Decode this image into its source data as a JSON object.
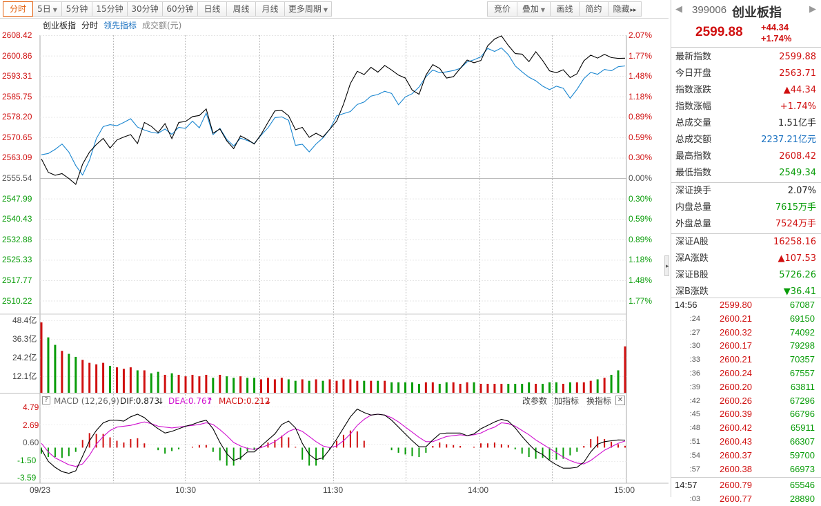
{
  "toolbar": {
    "left": [
      {
        "label": "分时",
        "caret": false
      },
      {
        "label": "5日",
        "caret": true
      },
      {
        "label": "5分钟",
        "caret": false
      },
      {
        "label": "15分钟",
        "caret": false
      },
      {
        "label": "30分钟",
        "caret": false
      },
      {
        "label": "60分钟",
        "caret": false
      },
      {
        "label": "日线",
        "caret": false
      },
      {
        "label": "周线",
        "caret": false
      },
      {
        "label": "月线",
        "caret": false
      },
      {
        "label": "更多周期",
        "caret": true
      }
    ],
    "right": [
      {
        "label": "竞价",
        "caret": false
      },
      {
        "label": "叠加",
        "caret": true
      },
      {
        "label": "画线",
        "caret": false
      },
      {
        "label": "简约",
        "caret": false
      },
      {
        "label": "隐藏",
        "caret": false,
        "more": "▸▸"
      }
    ]
  },
  "chart_header": {
    "name": "创业板指",
    "mode": "分时",
    "lead": "领先指标",
    "vol": "成交额(元)"
  },
  "price_axis": {
    "left": [
      "2608.42",
      "2600.86",
      "2593.31",
      "2585.75",
      "2578.20",
      "2570.65",
      "2563.09",
      "2555.54",
      "2547.99",
      "2540.43",
      "2532.88",
      "2525.33",
      "2517.77",
      "2510.22"
    ],
    "right": [
      "2.07%",
      "1.77%",
      "1.48%",
      "1.18%",
      "0.89%",
      "0.59%",
      "0.30%",
      "0.00%",
      "0.30%",
      "0.59%",
      "0.89%",
      "1.18%",
      "1.48%",
      "1.77%"
    ]
  },
  "volume_axis": [
    "48.4亿",
    "36.3亿",
    "24.2亿",
    "12.1亿"
  ],
  "macd": {
    "question": "?",
    "name": "MACD (12,26,9)",
    "dif": "DIF:0.873",
    "dea": "DEA:0.767",
    "macd": "MACD:0.212",
    "params": "改参数",
    "add": "加指标",
    "swap": "换指标",
    "close": "✕",
    "axis": [
      "4.79",
      "2.69",
      "0.60",
      "-1.50",
      "-3.59"
    ]
  },
  "time_axis": [
    "09/23",
    "10:30",
    "11:30",
    "14:00",
    "15:00"
  ],
  "colors": {
    "up": "#d01010",
    "down": "#089c08",
    "price": "#000000",
    "avg": "#1a86d0",
    "dea": "#d010d0"
  },
  "quote": {
    "code": "399006",
    "name": "创业板指",
    "price": "2599.88",
    "change": "+44.34",
    "pct": "+1.74%"
  },
  "stats": [
    {
      "k": "最新指数",
      "v": "2599.88",
      "c": "red"
    },
    {
      "k": "今日开盘",
      "v": "2563.71",
      "c": "red"
    },
    {
      "k": "指数涨跌",
      "v": "▲44.34",
      "c": "red"
    },
    {
      "k": "指数涨幅",
      "v": "+1.74%",
      "c": "red"
    },
    {
      "k": "总成交量",
      "v": "1.51亿手",
      "c": "blk"
    },
    {
      "k": "总成交额",
      "v": "2237.21亿元",
      "c": "blu"
    },
    {
      "k": "最高指数",
      "v": "2608.42",
      "c": "red"
    },
    {
      "k": "最低指数",
      "v": "2549.34",
      "c": "grn"
    },
    {
      "k": "深证换手",
      "v": "2.07%",
      "c": "blk"
    },
    {
      "k": "内盘总量",
      "v": "7615万手",
      "c": "grn"
    },
    {
      "k": "外盘总量",
      "v": "7524万手",
      "c": "red"
    },
    {
      "k": "深证A股",
      "v": "16258.16",
      "c": "red"
    },
    {
      "k": "深A涨跌",
      "v": "▲107.53",
      "c": "red"
    },
    {
      "k": "深证B股",
      "v": "5726.26",
      "c": "grn"
    },
    {
      "k": "深B涨跌",
      "v": "▼36.41",
      "c": "grn"
    }
  ],
  "ticks": [
    {
      "t": "14:56",
      "p": "2599.80",
      "v": "67087",
      "big": true
    },
    {
      "t": ":24",
      "p": "2600.21",
      "v": "69150"
    },
    {
      "t": ":27",
      "p": "2600.32",
      "v": "74092"
    },
    {
      "t": ":30",
      "p": "2600.17",
      "v": "79298"
    },
    {
      "t": ":33",
      "p": "2600.21",
      "v": "70357"
    },
    {
      "t": ":36",
      "p": "2600.24",
      "v": "67557"
    },
    {
      "t": ":39",
      "p": "2600.20",
      "v": "63811"
    },
    {
      "t": ":42",
      "p": "2600.26",
      "v": "67296"
    },
    {
      "t": ":45",
      "p": "2600.39",
      "v": "66796"
    },
    {
      "t": ":48",
      "p": "2600.42",
      "v": "65911"
    },
    {
      "t": ":51",
      "p": "2600.43",
      "v": "66307"
    },
    {
      "t": ":54",
      "p": "2600.37",
      "v": "59700"
    },
    {
      "t": ":57",
      "p": "2600.38",
      "v": "66973"
    },
    {
      "t": "14:57",
      "p": "2600.79",
      "v": "65546",
      "big": true
    },
    {
      "t": ":03",
      "p": "2600.77",
      "v": "28890"
    }
  ],
  "chart_data": {
    "type": "line",
    "prev_close": 2555.54,
    "price": {
      "name": "创业板指",
      "values": [
        2562.5,
        2557.5,
        2556.4,
        2557.0,
        2555.2,
        2553.0,
        2560.5,
        2565.0,
        2567.8,
        2570.1,
        2566.5,
        2569.5,
        2570.6,
        2571.5,
        2568.2,
        2576.0,
        2574.6,
        2572.3,
        2575.6,
        2570.0,
        2576.0,
        2576.4,
        2578.2,
        2578.6,
        2581.0,
        2572.0,
        2573.6,
        2569.2,
        2566.3,
        2571.0,
        2569.7,
        2568.0,
        2571.6,
        2576.0,
        2580.3,
        2580.5,
        2578.5,
        2573.3,
        2574.2,
        2570.5,
        2572.0,
        2570.6,
        2573.5,
        2576.5,
        2582.8,
        2590.5,
        2595.0,
        2593.8,
        2596.5,
        2594.7,
        2597.2,
        2595.5,
        2593.6,
        2592.5,
        2588.0,
        2586.5,
        2593.6,
        2597.5,
        2596.1,
        2592.5,
        2593.0,
        2596.1,
        2599.2,
        2598.2,
        2599.0,
        2604.5,
        2607.0,
        2608.2,
        2604.6,
        2601.6,
        2601.4,
        2598.6,
        2602.3,
        2599.0,
        2595.2,
        2594.5,
        2595.6,
        2592.7,
        2594.1,
        2598.9,
        2601.0,
        2599.9,
        2601.3,
        2600.1,
        2599.8,
        2599.88
      ]
    },
    "avg": {
      "name": "领先指标",
      "values": [
        2564.0,
        2564.5,
        2566.0,
        2568.0,
        2565.0,
        2560.0,
        2556.5,
        2562.0,
        2570.0,
        2574.5,
        2575.2,
        2574.8,
        2576.0,
        2577.4,
        2574.3,
        2573.2,
        2572.4,
        2572.0,
        2573.6,
        2571.6,
        2574.2,
        2573.8,
        2576.5,
        2574.0,
        2579.5,
        2571.5,
        2573.8,
        2569.7,
        2567.3,
        2570.2,
        2569.3,
        2568.2,
        2571.3,
        2574.0,
        2577.8,
        2578.1,
        2576.8,
        2567.5,
        2567.9,
        2565.1,
        2568.0,
        2570.3,
        2573.5,
        2578.5,
        2579.3,
        2580.1,
        2582.7,
        2583.6,
        2585.8,
        2586.4,
        2587.6,
        2586.8,
        2582.6,
        2585.5,
        2586.7,
        2589.2,
        2593.0,
        2595.5,
        2594.5,
        2594.8,
        2595.3,
        2596.1,
        2598.5,
        2599.3,
        2600.4,
        2603.5,
        2602.4,
        2603.7,
        2601.2,
        2597.0,
        2594.8,
        2592.8,
        2591.5,
        2589.5,
        2588.2,
        2589.5,
        2588.7,
        2585.0,
        2588.3,
        2592.3,
        2594.6,
        2593.9,
        2595.7,
        2595.2,
        2596.7,
        2597.0
      ]
    },
    "volume": [
      47,
      37,
      32,
      28,
      26,
      24,
      22,
      20,
      19,
      20,
      18,
      17,
      16,
      17,
      15,
      15,
      13,
      14,
      12,
      13,
      12,
      11,
      12,
      11,
      12,
      10,
      12,
      11,
      10,
      11,
      10,
      10,
      9,
      10,
      9,
      10,
      9,
      8,
      9,
      8,
      9,
      8,
      9,
      8,
      9,
      9,
      8,
      8,
      8,
      8,
      8,
      7,
      7,
      7,
      7,
      6,
      7,
      7,
      6,
      7,
      7,
      6,
      7,
      7,
      6,
      6,
      6,
      6,
      6,
      6,
      6,
      7,
      6,
      6,
      7,
      7,
      6,
      7,
      7,
      7,
      8,
      9,
      10,
      12,
      15,
      31
    ],
    "dif": [
      -0.2,
      -1.6,
      -2.3,
      -2.8,
      -3.0,
      -2.7,
      -1.0,
      0.8,
      2.0,
      2.9,
      3.2,
      3.2,
      3.1,
      3.6,
      3.9,
      3.5,
      2.8,
      2.2,
      1.7,
      1.9,
      2.2,
      2.5,
      2.7,
      3.0,
      3.2,
      2.2,
      0.6,
      -0.7,
      -1.5,
      -1.2,
      -0.5,
      -0.5,
      0.2,
      0.9,
      1.6,
      2.7,
      3.1,
      2.3,
      0.5,
      -0.8,
      -1.4,
      -1.2,
      -0.2,
      1.0,
      2.3,
      3.6,
      4.5,
      4.1,
      3.8,
      3.9,
      3.8,
      3.2,
      2.4,
      1.6,
      0.8,
      0.1,
      0.1,
      0.9,
      1.6,
      1.7,
      1.7,
      1.7,
      1.4,
      1.6,
      2.2,
      2.6,
      3.0,
      3.3,
      3.1,
      2.3,
      1.3,
      0.4,
      -0.4,
      -0.8,
      -1.5,
      -2.0,
      -2.4,
      -2.4,
      -2.3,
      -1.7,
      -0.5,
      0.4,
      0.7,
      0.8,
      0.9,
      0.873
    ],
    "dea": [
      0.5,
      -0.5,
      -1.2,
      -1.6,
      -2.0,
      -2.2,
      -1.9,
      -0.9,
      0.4,
      1.3,
      2.0,
      2.4,
      2.5,
      2.6,
      2.8,
      3.0,
      2.8,
      2.5,
      2.4,
      2.3,
      2.4,
      2.5,
      2.6,
      2.7,
      2.9,
      2.7,
      2.1,
      1.4,
      0.6,
      0.2,
      -0.1,
      -0.2,
      0.0,
      0.3,
      0.7,
      1.3,
      1.9,
      2.2,
      1.9,
      1.3,
      0.7,
      0.2,
      0.0,
      0.2,
      0.8,
      1.6,
      2.6,
      3.3,
      3.8,
      3.9,
      3.8,
      3.5,
      3.0,
      2.4,
      1.8,
      1.2,
      0.7,
      0.7,
      1.0,
      1.3,
      1.4,
      1.5,
      1.4,
      1.5,
      1.7,
      2.1,
      2.4,
      2.9,
      2.8,
      2.5,
      2.0,
      1.5,
      0.9,
      0.4,
      -0.1,
      -0.6,
      -1.1,
      -1.5,
      -1.8,
      -1.9,
      -1.5,
      -0.9,
      -0.3,
      0.1,
      0.5,
      0.767
    ],
    "macd_hist": [
      -0.7,
      -1.1,
      -1.1,
      -1.2,
      -1.0,
      -0.5,
      0.9,
      1.7,
      1.6,
      1.6,
      1.2,
      0.8,
      0.6,
      1.0,
      1.1,
      0.5,
      0.0,
      -0.3,
      -0.7,
      -0.4,
      -0.2,
      0.0,
      0.1,
      0.3,
      0.3,
      -0.5,
      -1.5,
      -2.1,
      -2.1,
      -1.4,
      -0.4,
      -0.3,
      0.2,
      0.6,
      0.9,
      1.4,
      1.2,
      0.1,
      -1.4,
      -2.1,
      -2.1,
      -1.4,
      -0.2,
      0.8,
      1.5,
      2.0,
      1.9,
      0.8,
      0.0,
      0.0,
      0.0,
      -0.3,
      -0.6,
      -0.8,
      -1.0,
      -1.1,
      -0.6,
      0.2,
      0.6,
      0.4,
      0.3,
      0.2,
      0.0,
      0.1,
      0.5,
      0.5,
      0.6,
      0.4,
      0.3,
      -0.2,
      -0.7,
      -1.1,
      -1.3,
      -1.2,
      -1.4,
      -1.4,
      -1.3,
      -0.9,
      -0.5,
      0.2,
      1.0,
      1.3,
      1.0,
      0.7,
      0.4,
      0.212
    ]
  }
}
